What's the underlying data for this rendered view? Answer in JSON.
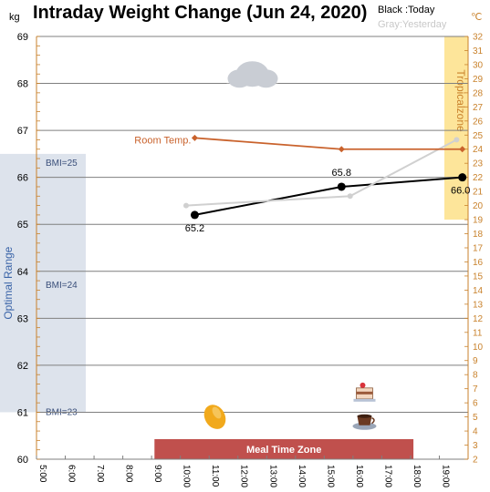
{
  "chart_data": {
    "type": "line",
    "title": "Intraday Weight Change (Jun 24, 2020)",
    "legend": {
      "today": "Black :Today",
      "yesterday": "Gray:Yesterday"
    },
    "left_axis": {
      "unit": "kg",
      "ylim": [
        60,
        69
      ],
      "ticks": [
        "60",
        "61",
        "62",
        "63",
        "64",
        "65",
        "66",
        "67",
        "68",
        "69"
      ]
    },
    "right_axis": {
      "unit": "℃",
      "ylim": [
        2,
        32
      ],
      "ticks": [
        "2",
        "3",
        "4",
        "5",
        "6",
        "7",
        "8",
        "9",
        "10",
        "11",
        "12",
        "13",
        "14",
        "15",
        "16",
        "17",
        "18",
        "19",
        "20",
        "21",
        "22",
        "23",
        "24",
        "25",
        "26",
        "27",
        "28",
        "29",
        "30",
        "31",
        "32"
      ]
    },
    "x_axis": {
      "xlim": [
        5,
        20
      ],
      "ticks": [
        {
          "v": 5,
          "label": "5:00"
        },
        {
          "v": 6,
          "label": "6:00"
        },
        {
          "v": 7,
          "label": "7:00"
        },
        {
          "v": 8,
          "label": "8:00"
        },
        {
          "v": 9,
          "label": "9:00"
        },
        {
          "v": 10,
          "label": "10:00"
        },
        {
          "v": 11,
          "label": "11:00"
        },
        {
          "v": 12,
          "label": "12:00"
        },
        {
          "v": 13,
          "label": "13:00"
        },
        {
          "v": 14,
          "label": "14:00"
        },
        {
          "v": 15,
          "label": "15:00"
        },
        {
          "v": 16,
          "label": "16:00"
        },
        {
          "v": 17,
          "label": "17:00"
        },
        {
          "v": 18,
          "label": "18:00"
        },
        {
          "v": 19,
          "label": "19:00"
        }
      ]
    },
    "series": [
      {
        "key": "today",
        "color": "#000000",
        "points": [
          {
            "x": 10.5,
            "y": 65.2,
            "label": "65.2"
          },
          {
            "x": 15.6,
            "y": 65.8,
            "label": "65.8"
          },
          {
            "x": 19.8,
            "y": 66.0,
            "label": "66.0"
          }
        ]
      },
      {
        "key": "yesterday",
        "color": "#d0d0d0",
        "points": [
          {
            "x": 10.2,
            "y": 65.4
          },
          {
            "x": 15.9,
            "y": 65.6
          },
          {
            "x": 19.6,
            "y": 66.8
          }
        ]
      },
      {
        "key": "room_temp",
        "name": "Room Temp.",
        "axis": "right",
        "color": "#c9622c",
        "points": [
          {
            "x": 10.5,
            "y": 24.8
          },
          {
            "x": 15.6,
            "y": 24.0
          },
          {
            "x": 19.8,
            "y": 24.0
          }
        ]
      }
    ],
    "bands": {
      "optimal_range": {
        "label": "Optimal Range",
        "y_from": 61,
        "y_to": 66.5,
        "color": "#dde3ec"
      },
      "bmi_markers": [
        {
          "label": "BMI=25",
          "y": 66.4
        },
        {
          "label": "BMI=24",
          "y": 63.8
        },
        {
          "label": "BMI=23",
          "y": 61.1
        }
      ],
      "tropical_zone": {
        "label": "Tropicalzone",
        "y_from": 19,
        "y_to": 32,
        "color": "#fde59a"
      },
      "meal_time_zone": {
        "label": "Meal Time Zone",
        "x_from": 9.1,
        "x_to": 18.1,
        "color": "#c0504d"
      }
    },
    "icons": [
      {
        "name": "cloud-icon",
        "x": 12.5,
        "y": 68.2
      },
      {
        "name": "mango-icon",
        "x": 11.2,
        "y": 60.9
      },
      {
        "name": "cake-icon",
        "x": 16.4,
        "y": 61.4
      },
      {
        "name": "coffee-icon",
        "x": 16.4,
        "y": 60.8
      }
    ],
    "grid": true
  }
}
